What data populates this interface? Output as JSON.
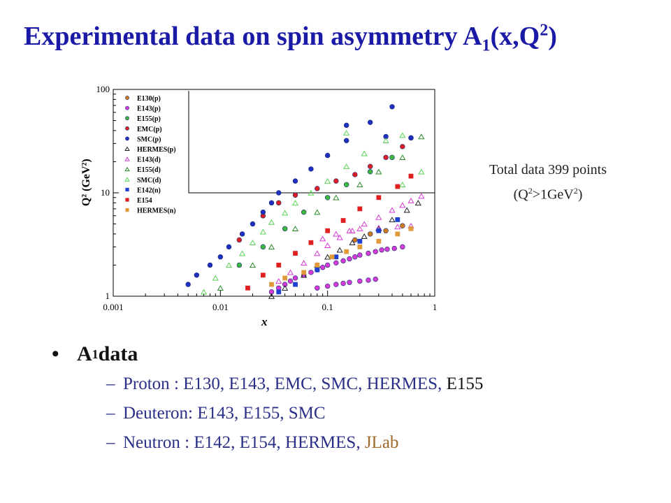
{
  "title": {
    "main": "Experimental data on spin asymmetry A",
    "sub1": "1",
    "mid": "(x,Q",
    "sup2": "2",
    "end": ")"
  },
  "note": {
    "line1": "Total data 399 points",
    "line2_a": "(Q",
    "line2_sup": "2",
    "line2_b": ">1GeV",
    "line2_sup2": "2",
    "line2_c": ")"
  },
  "bullets": {
    "main_a": "A",
    "main_sub": "1",
    "main_b": " data",
    "proton_label": "Proton",
    "proton_list": "    : E130, E143, EMC, SMC, HERMES, ",
    "proton_last": "E155",
    "deuteron_label": "Deuteron",
    "deuteron_list": ": E143, E155, SMC",
    "neutron_label": "Neutron",
    "neutron_list": "  : E142, E154, HERMES, ",
    "neutron_last": "JLab"
  },
  "chart_data": {
    "type": "scatter",
    "xscale": "log",
    "yscale": "log",
    "xlim": [
      0.001,
      1
    ],
    "ylim": [
      1,
      100
    ],
    "xlabel": "x",
    "ylabel": "Q² (GeV²)",
    "xticks": [
      "0.001",
      "0.01",
      "0.1",
      "1"
    ],
    "yticks": [
      "1",
      "10",
      "100"
    ],
    "legend_position": "top-left",
    "series": [
      {
        "name": "E130(p)",
        "marker": "circle",
        "color": "#d07a1a",
        "points": [
          [
            0.18,
            3.5
          ],
          [
            0.25,
            4.0
          ],
          [
            0.35,
            4.3
          ],
          [
            0.5,
            4.8
          ]
        ]
      },
      {
        "name": "E143(p)",
        "marker": "circle",
        "color": "#d43bd4",
        "points": [
          [
            0.03,
            1.1
          ],
          [
            0.035,
            1.2
          ],
          [
            0.04,
            1.3
          ],
          [
            0.045,
            1.4
          ],
          [
            0.05,
            1.5
          ],
          [
            0.06,
            1.6
          ],
          [
            0.07,
            1.7
          ],
          [
            0.08,
            1.8
          ],
          [
            0.09,
            1.9
          ],
          [
            0.1,
            2.0
          ],
          [
            0.12,
            2.1
          ],
          [
            0.14,
            2.2
          ],
          [
            0.16,
            2.3
          ],
          [
            0.18,
            2.4
          ],
          [
            0.2,
            2.5
          ],
          [
            0.24,
            2.6
          ],
          [
            0.28,
            2.7
          ],
          [
            0.32,
            2.8
          ],
          [
            0.36,
            2.85
          ],
          [
            0.42,
            2.9
          ],
          [
            0.5,
            3.0
          ],
          [
            0.08,
            1.2
          ],
          [
            0.1,
            1.25
          ],
          [
            0.12,
            1.3
          ],
          [
            0.14,
            1.33
          ],
          [
            0.16,
            1.36
          ],
          [
            0.2,
            1.4
          ],
          [
            0.24,
            1.43
          ],
          [
            0.28,
            1.46
          ]
        ]
      },
      {
        "name": "E155(p)",
        "marker": "circle",
        "color": "#3cb83c",
        "points": [
          [
            0.015,
            2.0
          ],
          [
            0.025,
            3.0
          ],
          [
            0.04,
            4.5
          ],
          [
            0.06,
            6.5
          ],
          [
            0.1,
            9.0
          ],
          [
            0.15,
            12.0
          ],
          [
            0.25,
            16.0
          ],
          [
            0.4,
            22.0
          ],
          [
            0.6,
            34.0
          ]
        ]
      },
      {
        "name": "EMC(p)",
        "marker": "circle",
        "color": "#e02020",
        "points": [
          [
            0.015,
            3.5
          ],
          [
            0.025,
            6.0
          ],
          [
            0.035,
            8.0
          ],
          [
            0.05,
            9.5
          ],
          [
            0.08,
            11.0
          ],
          [
            0.12,
            13.0
          ],
          [
            0.18,
            15.0
          ],
          [
            0.25,
            18.0
          ],
          [
            0.35,
            22.0
          ],
          [
            0.5,
            28.0
          ]
        ]
      },
      {
        "name": "SMC(p)",
        "marker": "circle",
        "color": "#1f2fbf",
        "points": [
          [
            0.005,
            1.3
          ],
          [
            0.006,
            1.6
          ],
          [
            0.008,
            2.0
          ],
          [
            0.01,
            2.4
          ],
          [
            0.012,
            3.0
          ],
          [
            0.016,
            4.0
          ],
          [
            0.02,
            5.0
          ],
          [
            0.025,
            6.5
          ],
          [
            0.03,
            8.0
          ],
          [
            0.035,
            10.0
          ],
          [
            0.05,
            13.0
          ],
          [
            0.07,
            17.0
          ],
          [
            0.1,
            23.0
          ],
          [
            0.15,
            32.0
          ],
          [
            0.25,
            48.0
          ],
          [
            0.4,
            68.0
          ],
          [
            0.6,
            34.0
          ],
          [
            0.35,
            35.0
          ],
          [
            0.15,
            45.0
          ]
        ]
      },
      {
        "name": "HERMES(p)",
        "marker": "triangle-open",
        "color": "#222222",
        "points": [
          [
            0.03,
            1.0
          ],
          [
            0.04,
            1.2
          ],
          [
            0.06,
            1.6
          ],
          [
            0.08,
            2.0
          ],
          [
            0.1,
            2.4
          ],
          [
            0.13,
            2.8
          ],
          [
            0.17,
            3.3
          ],
          [
            0.22,
            3.8
          ],
          [
            0.3,
            4.5
          ],
          [
            0.4,
            5.5
          ],
          [
            0.55,
            6.8
          ],
          [
            0.7,
            8.0
          ]
        ]
      },
      {
        "name": "E143(d)",
        "marker": "triangle-open",
        "color": "#d43bd4",
        "points": [
          [
            0.035,
            1.4
          ],
          [
            0.045,
            1.7
          ],
          [
            0.06,
            2.1
          ],
          [
            0.08,
            2.6
          ],
          [
            0.1,
            3.1
          ],
          [
            0.13,
            3.7
          ],
          [
            0.17,
            4.3
          ],
          [
            0.22,
            5.0
          ],
          [
            0.3,
            5.8
          ],
          [
            0.4,
            6.8
          ],
          [
            0.5,
            7.6
          ],
          [
            0.6,
            8.4
          ],
          [
            0.75,
            9.3
          ],
          [
            0.09,
            3.6
          ],
          [
            0.12,
            4.0
          ],
          [
            0.16,
            4.3
          ],
          [
            0.2,
            4.5
          ],
          [
            0.3,
            4.6
          ],
          [
            0.45,
            4.7
          ],
          [
            0.6,
            4.8
          ]
        ]
      },
      {
        "name": "E155(d)",
        "marker": "triangle-open",
        "color": "#2a8a2a",
        "points": [
          [
            0.01,
            1.2
          ],
          [
            0.02,
            2.0
          ],
          [
            0.03,
            3.0
          ],
          [
            0.05,
            4.5
          ],
          [
            0.08,
            6.5
          ],
          [
            0.12,
            9.0
          ],
          [
            0.2,
            12.0
          ],
          [
            0.3,
            16.0
          ],
          [
            0.5,
            22.0
          ],
          [
            0.75,
            35.0
          ]
        ]
      },
      {
        "name": "SMC(d)",
        "marker": "triangle-open",
        "color": "#57d457",
        "points": [
          [
            0.007,
            1.1
          ],
          [
            0.009,
            1.5
          ],
          [
            0.012,
            2.0
          ],
          [
            0.016,
            2.6
          ],
          [
            0.02,
            3.3
          ],
          [
            0.025,
            4.2
          ],
          [
            0.03,
            5.2
          ],
          [
            0.04,
            6.4
          ],
          [
            0.05,
            8.0
          ],
          [
            0.07,
            10.0
          ],
          [
            0.1,
            13.0
          ],
          [
            0.15,
            18.0
          ],
          [
            0.22,
            24.0
          ],
          [
            0.35,
            32.0
          ],
          [
            0.5,
            36.0
          ],
          [
            0.75,
            16.0
          ],
          [
            0.5,
            12.0
          ],
          [
            0.15,
            38.0
          ]
        ]
      },
      {
        "name": "E142(n)",
        "marker": "square",
        "color": "#2040d0",
        "points": [
          [
            0.035,
            1.1
          ],
          [
            0.05,
            1.3
          ],
          [
            0.08,
            1.8
          ],
          [
            0.12,
            2.4
          ],
          [
            0.2,
            3.4
          ],
          [
            0.3,
            4.3
          ],
          [
            0.45,
            5.5
          ]
        ]
      },
      {
        "name": "E154",
        "marker": "square",
        "color": "#e02020",
        "points": [
          [
            0.018,
            1.2
          ],
          [
            0.025,
            1.6
          ],
          [
            0.035,
            2.0
          ],
          [
            0.05,
            2.6
          ],
          [
            0.07,
            3.3
          ],
          [
            0.1,
            4.3
          ],
          [
            0.14,
            5.4
          ],
          [
            0.2,
            7.0
          ],
          [
            0.3,
            9.0
          ],
          [
            0.45,
            11.5
          ],
          [
            0.6,
            14.5
          ]
        ]
      },
      {
        "name": "HERMES(n)",
        "marker": "square",
        "color": "#e09a3a",
        "points": [
          [
            0.03,
            1.3
          ],
          [
            0.04,
            1.5
          ],
          [
            0.06,
            1.7
          ],
          [
            0.08,
            2.0
          ],
          [
            0.11,
            2.4
          ],
          [
            0.15,
            2.7
          ],
          [
            0.2,
            3.0
          ],
          [
            0.3,
            3.4
          ],
          [
            0.45,
            4.0
          ],
          [
            0.6,
            4.5
          ]
        ]
      }
    ]
  }
}
